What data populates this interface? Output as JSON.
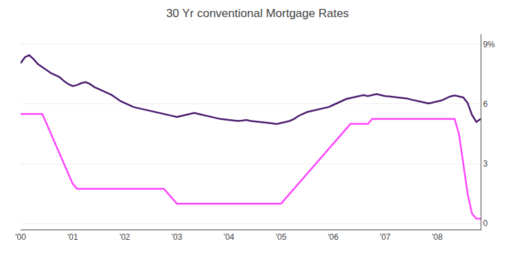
{
  "chart_data": {
    "type": "line",
    "title": "30 Yr conventional Mortgage Rates",
    "categories": [
      "'00",
      null,
      null,
      null,
      null,
      null,
      null,
      null,
      null,
      null,
      null,
      null,
      "'01",
      null,
      null,
      null,
      null,
      null,
      null,
      null,
      null,
      null,
      null,
      null,
      "'02",
      null,
      null,
      null,
      null,
      null,
      null,
      null,
      null,
      null,
      null,
      null,
      "'03",
      null,
      null,
      null,
      null,
      null,
      null,
      null,
      null,
      null,
      null,
      null,
      "'04",
      null,
      null,
      null,
      null,
      null,
      null,
      null,
      null,
      null,
      null,
      null,
      "'05",
      null,
      null,
      null,
      null,
      null,
      null,
      null,
      null,
      null,
      null,
      null,
      "'06",
      null,
      null,
      null,
      null,
      null,
      null,
      null,
      null,
      null,
      null,
      null,
      "'07",
      null,
      null,
      null,
      null,
      null,
      null,
      null,
      null,
      null,
      null,
      null,
      "'08",
      null,
      null,
      null,
      null,
      null,
      null,
      null,
      null,
      null,
      null
    ],
    "series": [
      {
        "color": "#4a1a6e",
        "values": [
          8.05,
          8.35,
          8.45,
          8.25,
          8.0,
          7.85,
          7.7,
          7.55,
          7.45,
          7.35,
          7.15,
          7.0,
          6.9,
          6.95,
          7.05,
          7.1,
          7.0,
          6.85,
          6.75,
          6.65,
          6.55,
          6.45,
          6.3,
          6.15,
          6.05,
          5.95,
          5.85,
          5.8,
          5.75,
          5.7,
          5.65,
          5.6,
          5.55,
          5.5,
          5.45,
          5.4,
          5.35,
          5.4,
          5.45,
          5.5,
          5.55,
          5.5,
          5.45,
          5.4,
          5.35,
          5.3,
          5.25,
          5.23,
          5.2,
          5.18,
          5.15,
          5.17,
          5.2,
          5.15,
          5.13,
          5.1,
          5.07,
          5.05,
          5.03,
          5.0,
          5.05,
          5.1,
          5.15,
          5.25,
          5.4,
          5.5,
          5.6,
          5.65,
          5.7,
          5.75,
          5.8,
          5.85,
          5.95,
          6.05,
          6.15,
          6.25,
          6.3,
          6.35,
          6.4,
          6.45,
          6.4,
          6.45,
          6.5,
          6.45,
          6.4,
          6.38,
          6.36,
          6.34,
          6.32,
          6.28,
          6.22,
          6.18,
          6.13,
          6.08,
          6.03,
          6.08,
          6.13,
          6.18,
          6.28,
          6.38,
          6.43,
          6.38,
          6.33,
          6.05,
          5.45,
          5.1,
          5.25
        ]
      },
      {
        "color": "#ff44ff",
        "values": [
          5.5,
          5.5,
          5.5,
          5.5,
          5.5,
          5.5,
          5.0,
          4.5,
          4.0,
          3.5,
          3.0,
          2.5,
          2.0,
          1.75,
          1.75,
          1.75,
          1.75,
          1.75,
          1.75,
          1.75,
          1.75,
          1.75,
          1.75,
          1.75,
          1.75,
          1.75,
          1.75,
          1.75,
          1.75,
          1.75,
          1.75,
          1.75,
          1.75,
          1.75,
          1.5,
          1.25,
          1.0,
          1.0,
          1.0,
          1.0,
          1.0,
          1.0,
          1.0,
          1.0,
          1.0,
          1.0,
          1.0,
          1.0,
          1.0,
          1.0,
          1.0,
          1.0,
          1.0,
          1.0,
          1.0,
          1.0,
          1.0,
          1.0,
          1.0,
          1.0,
          1.0,
          1.25,
          1.5,
          1.75,
          2.0,
          2.25,
          2.5,
          2.75,
          3.0,
          3.25,
          3.5,
          3.75,
          4.0,
          4.25,
          4.5,
          4.75,
          5.0,
          5.0,
          5.0,
          5.0,
          5.0,
          5.25,
          5.25,
          5.25,
          5.25,
          5.25,
          5.25,
          5.25,
          5.25,
          5.25,
          5.25,
          5.25,
          5.25,
          5.25,
          5.25,
          5.25,
          5.25,
          5.25,
          5.25,
          5.25,
          5.25,
          4.5,
          3.0,
          1.5,
          0.5,
          0.25,
          0.25
        ]
      }
    ],
    "ylim": [
      -0.3,
      9.5
    ],
    "yticks": [
      0,
      3,
      6,
      {
        "value": 9,
        "label": "9%"
      }
    ],
    "grid": true
  }
}
